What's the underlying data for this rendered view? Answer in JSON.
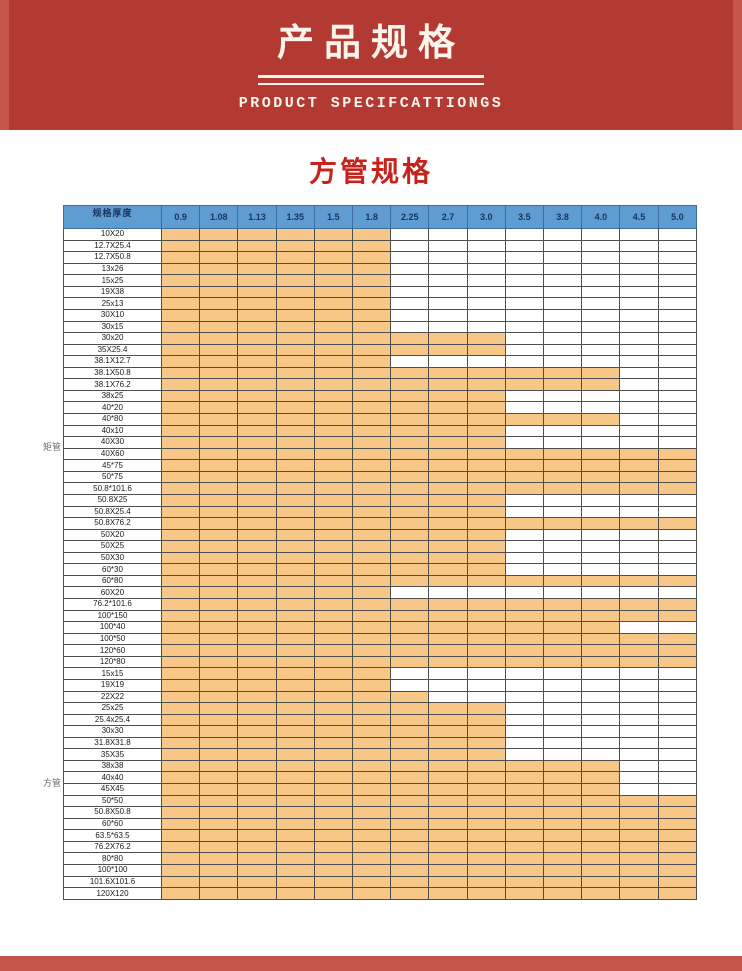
{
  "banner": {
    "title": "产品规格",
    "subtitle": "PRODUCT SPECIFCATTIONGS"
  },
  "section": {
    "title": "方管规格"
  },
  "colors": {
    "banner_red": "#b23a33",
    "banner_red_light": "#c5544b",
    "section_red": "#c5231c",
    "header_blue": "#5e9cd2",
    "header_text_blue": "#17365d",
    "cell_orange": "#f6c787",
    "grid_line": "#4f4f4f"
  },
  "table": {
    "corner_label": "规格厚度",
    "columns": [
      "0.9",
      "1.08",
      "1.13",
      "1.35",
      "1.5",
      "1.8",
      "2.25",
      "2.7",
      "3.0",
      "3.5",
      "3.8",
      "4.0",
      "4.5",
      "5.0"
    ],
    "legend_note": "",
    "groups": [
      {
        "label": "矩管",
        "rows": [
          {
            "label": "10X20",
            "span": 6
          },
          {
            "label": "12.7X25.4",
            "span": 6
          },
          {
            "label": "12.7X50.8",
            "span": 6
          },
          {
            "label": "13x26",
            "span": 6
          },
          {
            "label": "15x25",
            "span": 6
          },
          {
            "label": "19X38",
            "span": 6
          },
          {
            "label": "25x13",
            "span": 6
          },
          {
            "label": "30X10",
            "span": 6
          },
          {
            "label": "30x15",
            "span": 6
          },
          {
            "label": "30x20",
            "span": 9
          },
          {
            "label": "35X25.4",
            "span": 9
          },
          {
            "label": "38.1X12.7",
            "span": 6
          },
          {
            "label": "38.1X50.8",
            "span": 12
          },
          {
            "label": "38.1X76.2",
            "span": 12
          },
          {
            "label": "38x25",
            "span": 9
          },
          {
            "label": "40*20",
            "span": 9
          },
          {
            "label": "40*80",
            "span": 12
          },
          {
            "label": "40x10",
            "span": 9
          },
          {
            "label": "40X30",
            "span": 9
          },
          {
            "label": "40X60",
            "span": 14
          },
          {
            "label": "45*75",
            "span": 14
          },
          {
            "label": "50*75",
            "span": 14
          },
          {
            "label": "50.8*101.6",
            "span": 14
          },
          {
            "label": "50.8X25",
            "span": 9
          },
          {
            "label": "50.8X25.4",
            "span": 9
          },
          {
            "label": "50.8X76.2",
            "span": 14
          },
          {
            "label": "50X20",
            "span": 9
          },
          {
            "label": "50X25",
            "span": 9
          },
          {
            "label": "50X30",
            "span": 9
          },
          {
            "label": "60*30",
            "span": 9
          },
          {
            "label": "60*80",
            "span": 14
          },
          {
            "label": "60X20",
            "span": 6
          },
          {
            "label": "76.2*101.6",
            "span": 14
          },
          {
            "label": "100*150",
            "span": 14
          },
          {
            "label": "100*40",
            "span": 12
          },
          {
            "label": "100*50",
            "span": 14
          },
          {
            "label": "120*60",
            "span": 14
          },
          {
            "label": "120*80",
            "span": 14
          }
        ]
      },
      {
        "label": "方管",
        "rows": [
          {
            "label": "15x15",
            "span": 6
          },
          {
            "label": "19X19",
            "span": 6
          },
          {
            "label": "22X22",
            "span": 7
          },
          {
            "label": "25x25",
            "span": 9
          },
          {
            "label": "25.4x25.4",
            "span": 9
          },
          {
            "label": "30x30",
            "span": 9
          },
          {
            "label": "31.8X31.8",
            "span": 9
          },
          {
            "label": "35X35",
            "span": 9
          },
          {
            "label": "38x38",
            "span": 12
          },
          {
            "label": "40x40",
            "span": 12
          },
          {
            "label": "45X45",
            "span": 12
          },
          {
            "label": "50*50",
            "span": 14
          },
          {
            "label": "50.8X50.8",
            "span": 14
          },
          {
            "label": "60*60",
            "span": 14
          },
          {
            "label": "63.5*63.5",
            "span": 14
          },
          {
            "label": "76.2X76.2",
            "span": 14
          },
          {
            "label": "80*80",
            "span": 14
          },
          {
            "label": "100*100",
            "span": 14
          },
          {
            "label": "101.6X101.6",
            "span": 14
          },
          {
            "label": "120X120",
            "span": 14
          }
        ]
      }
    ]
  }
}
